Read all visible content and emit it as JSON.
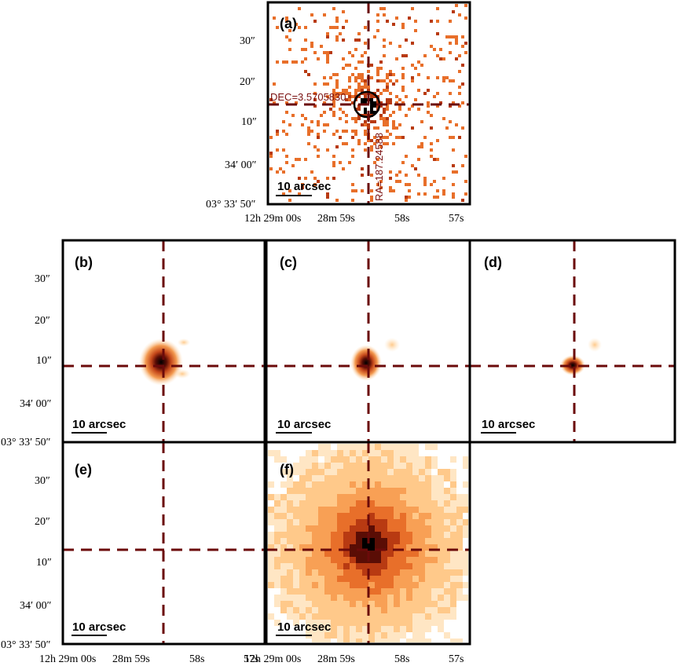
{
  "colors": {
    "frame": "#000000",
    "crosshair": "#6b0a0a",
    "colormap": [
      "#ffffff",
      "#ffe6c4",
      "#ffc98a",
      "#f8a055",
      "#e86f2a",
      "#b83a12",
      "#5a0d05",
      "#000000"
    ]
  },
  "axes": {
    "y_ticks": [
      "30″",
      "20″",
      "10″",
      "34′ 00″",
      "03° 33′ 50″"
    ],
    "x_ticks": [
      "12h 29m 00s",
      "28m 59s",
      "58s",
      "57s"
    ],
    "x_tick_overlap_text": "12h 29m 00s"
  },
  "scale_bar_label": "10 arcsec",
  "crosshair_labels": {
    "dec": "DEC=3.5705830",
    "ra": "RA=187.24588"
  },
  "panels": [
    {
      "id": "a",
      "label": "(a)",
      "kind": "counts"
    },
    {
      "id": "b",
      "label": "(b)",
      "kind": "small-blob"
    },
    {
      "id": "c",
      "label": "(c)",
      "kind": "small-blob"
    },
    {
      "id": "d",
      "label": "(d)",
      "kind": "small-blob"
    },
    {
      "id": "e",
      "label": "(e)",
      "kind": "empty"
    },
    {
      "id": "f",
      "label": "(f)",
      "kind": "large-blob"
    }
  ]
}
